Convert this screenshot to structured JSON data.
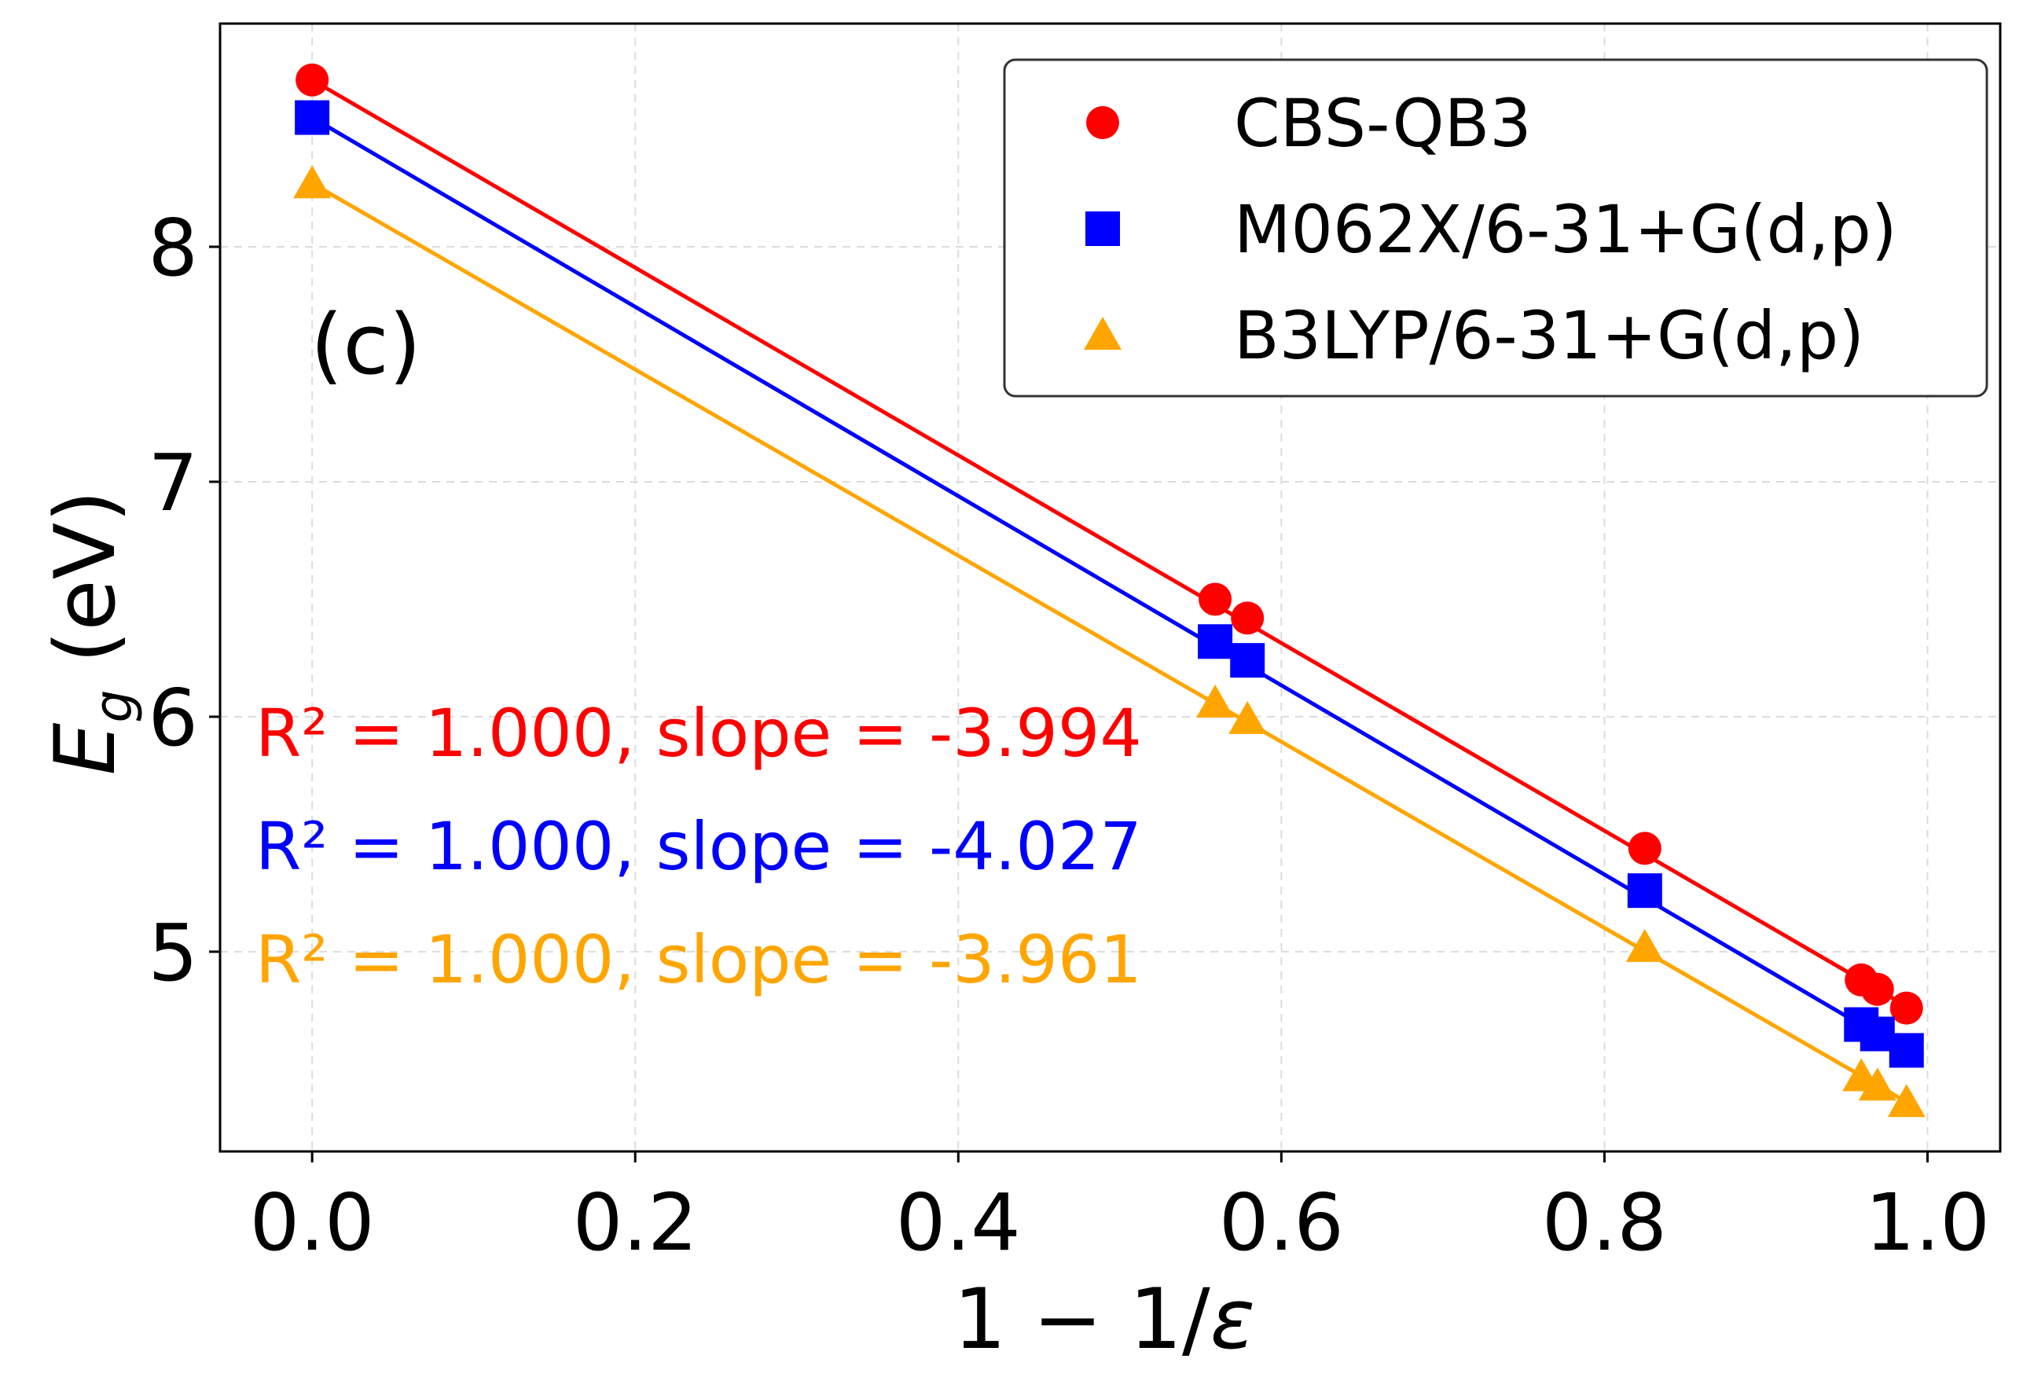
{
  "chart_data": {
    "type": "scatter",
    "panel_label": "(c)",
    "xlabel": "1 − 1/ε",
    "ylabel": "Eg (eV)",
    "ylabel_main": "E",
    "ylabel_sub": "g",
    "ylabel_unit": " (eV)",
    "xlim": [
      -0.057,
      1.045
    ],
    "ylim": [
      4.15,
      8.95
    ],
    "xticks": [
      0.0,
      0.2,
      0.4,
      0.6,
      0.8,
      1.0
    ],
    "xtick_labels": [
      "0.0",
      "0.2",
      "0.4",
      "0.6",
      "0.8",
      "1.0"
    ],
    "yticks": [
      5,
      6,
      7,
      8
    ],
    "ytick_labels": [
      "5",
      "6",
      "7",
      "8"
    ],
    "grid": true,
    "legend_position": "top-right",
    "series": [
      {
        "name": "CBS-QB3",
        "color": "#ff0000",
        "marker": "circle",
        "x": [
          0.0,
          0.559,
          0.579,
          0.825,
          0.959,
          0.969,
          0.987
        ],
        "y": [
          8.71,
          6.5,
          6.42,
          5.44,
          4.88,
          4.84,
          4.76
        ],
        "fit": {
          "slope": -3.994,
          "intercept": 8.71,
          "r2": 1.0
        },
        "stat_label": "R² = 1.000, slope = -3.994"
      },
      {
        "name": "M062X/6-31+G(d,p)",
        "color": "#0000ff",
        "marker": "square",
        "x": [
          0.0,
          0.559,
          0.579,
          0.825,
          0.959,
          0.969,
          0.987
        ],
        "y": [
          8.55,
          6.32,
          6.24,
          5.26,
          4.69,
          4.65,
          4.58
        ],
        "fit": {
          "slope": -4.027,
          "intercept": 8.55,
          "r2": 1.0
        },
        "stat_label": "R² = 1.000, slope = -4.027"
      },
      {
        "name": "B3LYP/6-31+G(d,p)",
        "color": "#ffa500",
        "marker": "triangle",
        "x": [
          0.0,
          0.559,
          0.579,
          0.825,
          0.959,
          0.969,
          0.987
        ],
        "y": [
          8.27,
          6.06,
          5.99,
          5.02,
          4.47,
          4.43,
          4.36
        ],
        "fit": {
          "slope": -3.961,
          "intercept": 8.27,
          "r2": 1.0
        },
        "stat_label": "R² = 1.000, slope = -3.961"
      }
    ]
  }
}
